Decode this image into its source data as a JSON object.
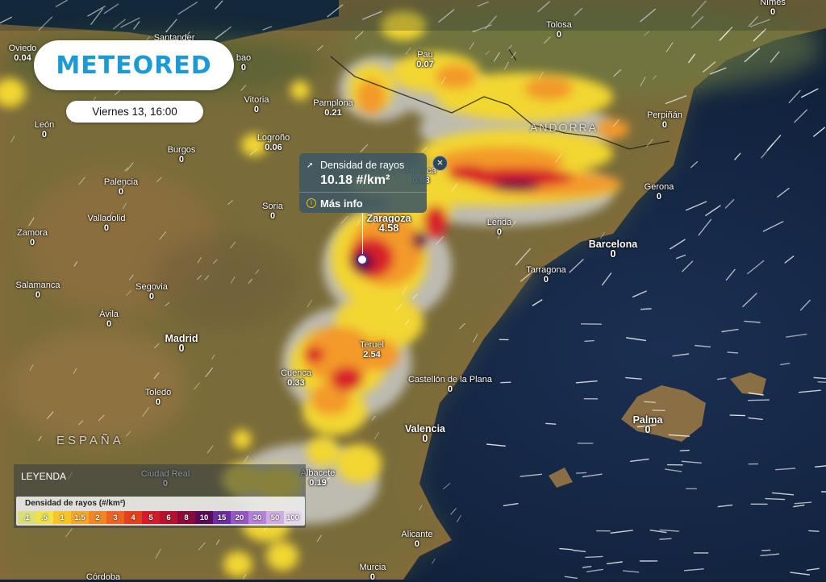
{
  "header": {
    "logo": "METEORED",
    "date": "Viernes 13, 16:00"
  },
  "tooltip": {
    "title": "Densidad de rayos",
    "value": "10.18 #/km²",
    "more_info": "Más info"
  },
  "legend": {
    "title": "LEYENDA",
    "name": "Densidad de rayos (#/km²)",
    "items": [
      {
        "label": ".1",
        "color": "#d8de7a"
      },
      {
        "label": ".5",
        "color": "#efe14a"
      },
      {
        "label": "1",
        "color": "#f7c52a"
      },
      {
        "label": "1.5",
        "color": "#f6a628"
      },
      {
        "label": "2",
        "color": "#f18626"
      },
      {
        "label": "3",
        "color": "#eb6423"
      },
      {
        "label": "4",
        "color": "#e2401f"
      },
      {
        "label": "5",
        "color": "#d21c2c"
      },
      {
        "label": "6",
        "color": "#b5122f"
      },
      {
        "label": "8",
        "color": "#8a0b3a"
      },
      {
        "label": "10",
        "color": "#5a0c56"
      },
      {
        "label": "15",
        "color": "#6a2ea0"
      },
      {
        "label": "20",
        "color": "#9458c4"
      },
      {
        "label": "30",
        "color": "#b483d8"
      },
      {
        "label": "50",
        "color": "#d0addf"
      },
      {
        "label": "100",
        "color": "#e7d5ef"
      }
    ]
  },
  "region_labels": {
    "spain": "ESPAÑA",
    "andorra": "ANDORRA"
  },
  "cities": [
    {
      "name": "Oviedo",
      "value": "0.04"
    },
    {
      "name": "Santander",
      "value": ""
    },
    {
      "name": "bao",
      "value": "0"
    },
    {
      "name": "Pau",
      "value": "0.07"
    },
    {
      "name": "Tolosa",
      "value": "0"
    },
    {
      "name": "Nîmes",
      "value": "0"
    },
    {
      "name": "Pamplona",
      "value": "0.21"
    },
    {
      "name": "Vitoria",
      "value": "0"
    },
    {
      "name": "León",
      "value": "0"
    },
    {
      "name": "Logroño",
      "value": "0.06"
    },
    {
      "name": "Burgos",
      "value": "0"
    },
    {
      "name": "Perpiñán",
      "value": "0"
    },
    {
      "name": "Huesca",
      "value": "0.98"
    },
    {
      "name": "Palencia",
      "value": "0"
    },
    {
      "name": "Soria",
      "value": "0"
    },
    {
      "name": "Gerona",
      "value": "0"
    },
    {
      "name": "Zamora",
      "value": "0"
    },
    {
      "name": "Valladolid",
      "value": "0"
    },
    {
      "name": "Zaragoza",
      "value": "4.58"
    },
    {
      "name": "Lérida",
      "value": "0"
    },
    {
      "name": "Barcelona",
      "value": "0"
    },
    {
      "name": "Tarragona",
      "value": "0"
    },
    {
      "name": "Salamanca",
      "value": "0"
    },
    {
      "name": "Segovia",
      "value": "0"
    },
    {
      "name": "Ávila",
      "value": "0"
    },
    {
      "name": "Madrid",
      "value": "0"
    },
    {
      "name": "Teruel",
      "value": "2.54"
    },
    {
      "name": "Cuenca",
      "value": "0.33"
    },
    {
      "name": "Toledo",
      "value": "0"
    },
    {
      "name": "Castellón de la Plana",
      "value": "0"
    },
    {
      "name": "Palma",
      "value": "0"
    },
    {
      "name": "Valencia",
      "value": "0"
    },
    {
      "name": "Ciudad Real",
      "value": "0"
    },
    {
      "name": "Albacete",
      "value": "0.19"
    },
    {
      "name": "Alicante",
      "value": "0"
    },
    {
      "name": "Murcia",
      "value": "0"
    },
    {
      "name": "Córdoba",
      "value": ""
    }
  ]
}
